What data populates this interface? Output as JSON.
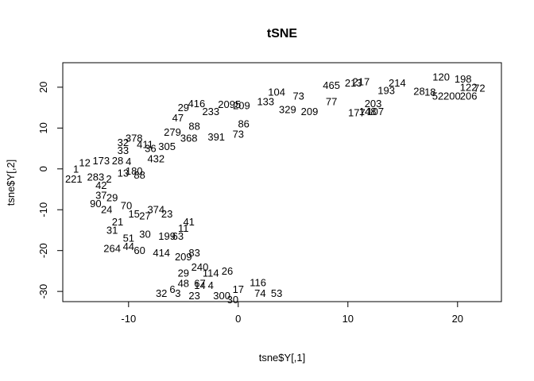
{
  "chart_data": {
    "type": "scatter",
    "title": "tSNE",
    "xlabel": "tsne$Y[,1]",
    "ylabel": "tsne$Y[,2]",
    "xlim": [
      -16,
      24
    ],
    "ylim": [
      -32.5,
      26
    ],
    "xticks": [
      -10,
      0,
      10,
      20
    ],
    "yticks": [
      -30,
      -20,
      -10,
      0,
      10,
      20
    ],
    "grid": false,
    "legend": "none",
    "point_labels": [
      {
        "x": 3.5,
        "y": 18.8,
        "label": "104"
      },
      {
        "x": 5.5,
        "y": 17.8,
        "label": "73"
      },
      {
        "x": 8.5,
        "y": 20.5,
        "label": "465"
      },
      {
        "x": 10.5,
        "y": 21.0,
        "label": "213"
      },
      {
        "x": 11.2,
        "y": 21.3,
        "label": "217"
      },
      {
        "x": 14.5,
        "y": 21.0,
        "label": "214"
      },
      {
        "x": 18.5,
        "y": 22.5,
        "label": "120"
      },
      {
        "x": 20.5,
        "y": 22.0,
        "label": "198"
      },
      {
        "x": 21.0,
        "y": 20.0,
        "label": "122"
      },
      {
        "x": 22.0,
        "y": 19.8,
        "label": "72"
      },
      {
        "x": 18.2,
        "y": 17.8,
        "label": "52"
      },
      {
        "x": 19.5,
        "y": 17.8,
        "label": "200"
      },
      {
        "x": 21.0,
        "y": 17.8,
        "label": "206"
      },
      {
        "x": 16.5,
        "y": 19.0,
        "label": "28"
      },
      {
        "x": 17.5,
        "y": 18.8,
        "label": "18"
      },
      {
        "x": 13.5,
        "y": 19.2,
        "label": "193"
      },
      {
        "x": 12.3,
        "y": 16.0,
        "label": "203"
      },
      {
        "x": 12.5,
        "y": 14.0,
        "label": "107"
      },
      {
        "x": 10.8,
        "y": 13.8,
        "label": "177"
      },
      {
        "x": 11.8,
        "y": 14.0,
        "label": "148"
      },
      {
        "x": 8.5,
        "y": 16.5,
        "label": "77"
      },
      {
        "x": 6.5,
        "y": 14.0,
        "label": "209"
      },
      {
        "x": 4.5,
        "y": 14.5,
        "label": "329"
      },
      {
        "x": 2.5,
        "y": 16.5,
        "label": "133"
      },
      {
        "x": 0.3,
        "y": 15.5,
        "label": "209"
      },
      {
        "x": -0.8,
        "y": 15.8,
        "label": "2095"
      },
      {
        "x": -5.0,
        "y": 15.0,
        "label": "29"
      },
      {
        "x": -3.8,
        "y": 16.0,
        "label": "416"
      },
      {
        "x": -2.5,
        "y": 14.0,
        "label": "233"
      },
      {
        "x": -5.5,
        "y": 12.5,
        "label": "47"
      },
      {
        "x": -6.0,
        "y": 9.0,
        "label": "279"
      },
      {
        "x": -4.0,
        "y": 10.5,
        "label": "88"
      },
      {
        "x": 0.5,
        "y": 11.0,
        "label": "86"
      },
      {
        "x": -4.5,
        "y": 7.5,
        "label": "368"
      },
      {
        "x": -2.0,
        "y": 7.8,
        "label": "391"
      },
      {
        "x": 0.0,
        "y": 8.5,
        "label": "73"
      },
      {
        "x": -10.5,
        "y": 6.5,
        "label": "32"
      },
      {
        "x": -9.5,
        "y": 7.5,
        "label": "378"
      },
      {
        "x": -8.5,
        "y": 6.0,
        "label": "411"
      },
      {
        "x": -8.0,
        "y": 5.0,
        "label": "36"
      },
      {
        "x": -6.5,
        "y": 5.5,
        "label": "305"
      },
      {
        "x": -7.5,
        "y": 2.5,
        "label": "432"
      },
      {
        "x": -10.5,
        "y": 4.5,
        "label": "33"
      },
      {
        "x": -12.5,
        "y": 2.0,
        "label": "173"
      },
      {
        "x": -11.0,
        "y": 2.0,
        "label": "28"
      },
      {
        "x": -10.0,
        "y": 1.8,
        "label": "4"
      },
      {
        "x": -9.5,
        "y": -0.5,
        "label": "180"
      },
      {
        "x": -10.5,
        "y": -1.0,
        "label": "13"
      },
      {
        "x": -9.0,
        "y": -1.5,
        "label": "88"
      },
      {
        "x": -14.8,
        "y": 0.0,
        "label": "1"
      },
      {
        "x": -14.0,
        "y": 1.5,
        "label": "12"
      },
      {
        "x": -15.0,
        "y": -2.5,
        "label": "221"
      },
      {
        "x": -13.0,
        "y": -2.0,
        "label": "283"
      },
      {
        "x": -11.8,
        "y": -2.5,
        "label": "2"
      },
      {
        "x": -12.5,
        "y": -4.0,
        "label": "42"
      },
      {
        "x": -12.5,
        "y": -6.5,
        "label": "37"
      },
      {
        "x": -13.0,
        "y": -8.5,
        "label": "90"
      },
      {
        "x": -11.5,
        "y": -7.0,
        "label": "29"
      },
      {
        "x": -12.0,
        "y": -10.0,
        "label": "24"
      },
      {
        "x": -10.2,
        "y": -9.0,
        "label": "70"
      },
      {
        "x": -9.5,
        "y": -11.0,
        "label": "15"
      },
      {
        "x": -7.5,
        "y": -10.0,
        "label": "374"
      },
      {
        "x": -6.5,
        "y": -11.0,
        "label": "23"
      },
      {
        "x": -8.5,
        "y": -11.5,
        "label": "27"
      },
      {
        "x": -11.0,
        "y": -13.0,
        "label": "21"
      },
      {
        "x": -5.0,
        "y": -14.5,
        "label": "11"
      },
      {
        "x": -4.5,
        "y": -13.0,
        "label": "41"
      },
      {
        "x": -11.5,
        "y": -15.0,
        "label": "31"
      },
      {
        "x": -10.0,
        "y": -17.0,
        "label": "51"
      },
      {
        "x": -8.5,
        "y": -16.0,
        "label": "30"
      },
      {
        "x": -6.5,
        "y": -16.5,
        "label": "199"
      },
      {
        "x": -5.5,
        "y": -16.5,
        "label": "63"
      },
      {
        "x": -11.5,
        "y": -19.5,
        "label": "264"
      },
      {
        "x": -10.0,
        "y": -19.0,
        "label": "44"
      },
      {
        "x": -9.0,
        "y": -20.0,
        "label": "60"
      },
      {
        "x": -7.0,
        "y": -20.5,
        "label": "414"
      },
      {
        "x": -5.0,
        "y": -21.5,
        "label": "209"
      },
      {
        "x": -4.0,
        "y": -20.5,
        "label": "83"
      },
      {
        "x": -3.5,
        "y": -24.0,
        "label": "240"
      },
      {
        "x": -5.0,
        "y": -25.5,
        "label": "29"
      },
      {
        "x": -2.5,
        "y": -25.5,
        "label": "114"
      },
      {
        "x": -1.0,
        "y": -25.0,
        "label": "26"
      },
      {
        "x": -5.0,
        "y": -28.0,
        "label": "48"
      },
      {
        "x": -3.5,
        "y": -28.5,
        "label": "14"
      },
      {
        "x": -6.0,
        "y": -29.5,
        "label": "6"
      },
      {
        "x": -7.0,
        "y": -30.5,
        "label": "32"
      },
      {
        "x": -5.5,
        "y": -30.5,
        "label": "3"
      },
      {
        "x": -4.0,
        "y": -31.0,
        "label": "23"
      },
      {
        "x": -3.5,
        "y": -28.0,
        "label": "67"
      },
      {
        "x": -2.5,
        "y": -28.5,
        "label": "4"
      },
      {
        "x": -1.5,
        "y": -31.0,
        "label": "300"
      },
      {
        "x": -0.5,
        "y": -32.0,
        "label": "30"
      },
      {
        "x": 0.0,
        "y": -29.5,
        "label": "17"
      },
      {
        "x": 1.8,
        "y": -27.8,
        "label": "116"
      },
      {
        "x": 2.0,
        "y": -30.5,
        "label": "74"
      },
      {
        "x": 3.5,
        "y": -30.5,
        "label": "53"
      }
    ]
  }
}
